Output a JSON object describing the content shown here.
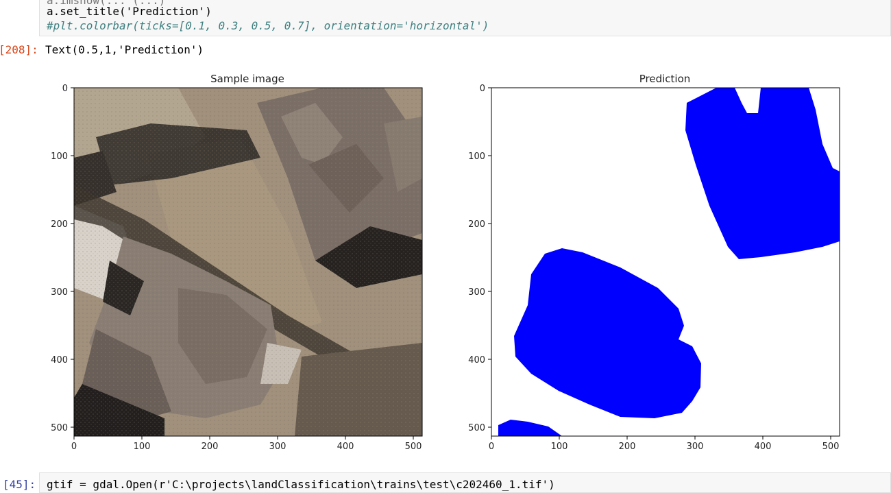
{
  "cell_top": {
    "partial_line": "a.imshow(... (...)",
    "line1": "a.set_title('Prediction')",
    "line2": "#plt.colorbar(ticks=[0.1, 0.3, 0.5, 0.7], orientation='horizontal')"
  },
  "output": {
    "prompt": "[208]:",
    "text": "Text(0.5,1,'Prediction')"
  },
  "figure": {
    "left_title": "Sample image",
    "right_title": "Prediction",
    "x_ticks": [
      "0",
      "100",
      "200",
      "300",
      "400",
      "500"
    ],
    "y_ticks": [
      "0",
      "100",
      "200",
      "300",
      "400",
      "500"
    ],
    "axis_range": [
      0,
      512
    ],
    "mask_color": "#0000ff"
  },
  "cell_bottom": {
    "prompt": "[45]:",
    "code": "gtif = gdal.Open(r'C:\\projects\\landClassification\\trains\\test\\c202460_1.tif')"
  }
}
